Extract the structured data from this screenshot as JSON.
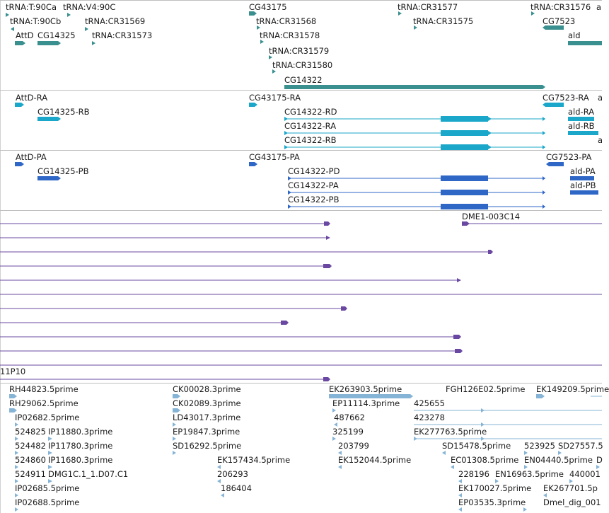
{
  "colors": {
    "gene": "#3a8f8f",
    "transcript": "#1aa7c9",
    "protein": "#2f67c7",
    "clone": "#6a48a2",
    "est": "#86b4d6",
    "separator": "#bfbfbf"
  },
  "gene_track": {
    "labels": [
      "tRNA:T:90Ca",
      "tRNA:V4:90C",
      "tRNA:T:90Cb",
      "tRNA:CR31569",
      "AttD",
      "CG14325",
      "tRNA:CR31573",
      "CG43175",
      "tRNA:CR31568",
      "tRNA:CR31578",
      "tRNA:CR31579",
      "tRNA:CR31580",
      "CG14322",
      "tRNA:CR31577",
      "tRNA:CR31575",
      "tRNA:CR31576",
      "a",
      "CG7523",
      "ald"
    ]
  },
  "transcript_track": {
    "labels": [
      "AttD-RA",
      "CG14325-RB",
      "CG43175-RA",
      "CG14322-RD",
      "CG14322-RA",
      "CG14322-RB",
      "CG7523-RA",
      "a",
      "ald-RA",
      "ald-RB",
      "a"
    ]
  },
  "protein_track": {
    "labels": [
      "AttD-PA",
      "CG14325-PB",
      "CG43175-PA",
      "CG14322-PD",
      "CG14322-PA",
      "CG14322-PB",
      "CG7523-PA",
      "ald-PA",
      "ald-PB"
    ]
  },
  "clone_track": {
    "labels": [
      "DME1-003C14",
      "11P10"
    ]
  },
  "est_track": {
    "labels": [
      "RH44823.5prime",
      "RH29062.5prime",
      "IP02682.5prime",
      "524825",
      "IP11880.3prime",
      "524482",
      "IP11780.3prime",
      "524860",
      "IP11680.3prime",
      "524911",
      "DMG1C.1_1.D07.C1",
      "IP02685.5prime",
      "IP02688.5prime",
      "CK00028.3prime",
      "CK02089.3prime",
      "LD43017.3prime",
      "EP19847.3prime",
      "SD16292.5prime",
      "EK157434.5prime",
      "206293",
      "186404",
      "EK263903.5prime",
      "EP11114.3prime",
      "487662",
      "325199",
      "203799",
      "EK152044.5prime",
      "FGH126E02.5prime",
      "425655",
      "423278",
      "EK277763.5prime",
      "SD15478.5prime",
      "EC01308.5prime",
      "228196",
      "EK170027.5prime",
      "EP03535.3prime",
      "523925",
      "SD27557.5",
      "EN04440.5prime",
      "EN16963.5prime",
      "440001",
      "D",
      "EK267701.5p",
      "Dmel_dig_001",
      "EK149209.5prime"
    ]
  }
}
